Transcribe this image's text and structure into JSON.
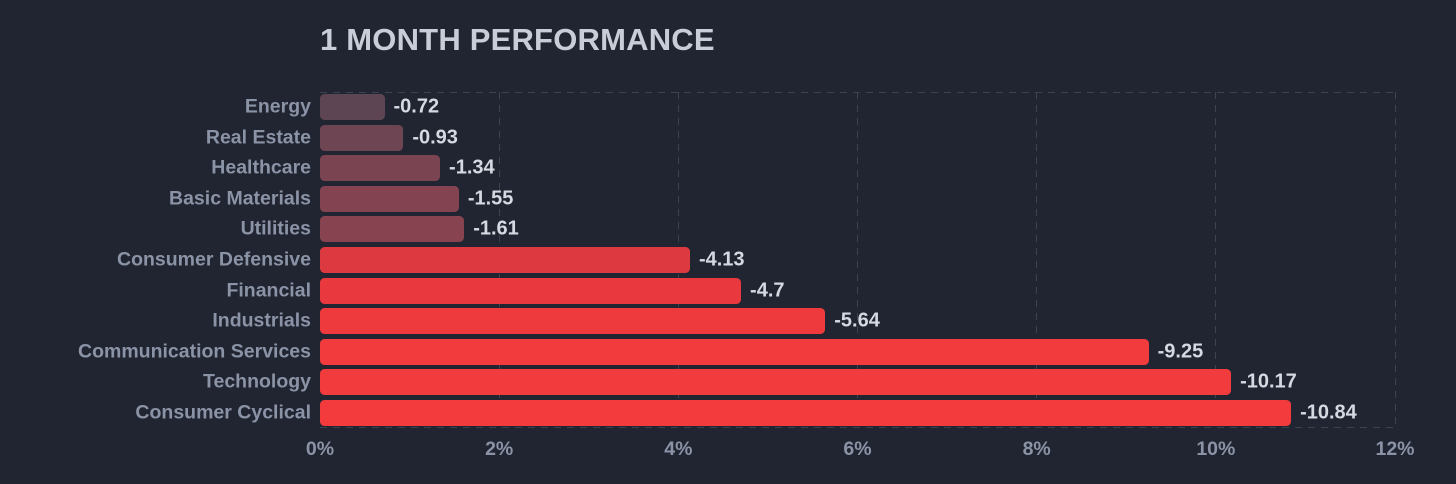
{
  "title": "1 MONTH PERFORMANCE",
  "theme": {
    "background": "#212531",
    "grid": "#3c4250",
    "title_text": "#c9cdd7",
    "category_text": "#8b93a6",
    "value_text": "#d5d9e1"
  },
  "chart_data": {
    "type": "bar",
    "orientation": "horizontal",
    "title": "1 MONTH PERFORMANCE",
    "categories": [
      "Energy",
      "Real Estate",
      "Healthcare",
      "Basic Materials",
      "Utilities",
      "Consumer Defensive",
      "Financial",
      "Industrials",
      "Communication Services",
      "Technology",
      "Consumer Cyclical"
    ],
    "values": [
      -0.72,
      -0.93,
      -1.34,
      -1.55,
      -1.61,
      -4.13,
      -4.7,
      -5.64,
      -9.25,
      -10.17,
      -10.84
    ],
    "value_labels": [
      "-0.72",
      "-0.93",
      "-1.34",
      "-1.55",
      "-1.61",
      "-4.13",
      "-4.7",
      "-5.64",
      "-9.25",
      "-10.17",
      "-10.84"
    ],
    "bar_colors": [
      "#5e4554",
      "#6d4553",
      "#7b4451",
      "#834350",
      "#87434f",
      "#dc3940",
      "#e9393e",
      "#ee3a3d",
      "#f13b3d",
      "#f23b3d",
      "#f33b3d"
    ],
    "xlabel": "",
    "ylabel": "",
    "x_tick_labels": [
      "0%",
      "2%",
      "4%",
      "6%",
      "8%",
      "10%",
      "12%"
    ],
    "x_tick_values": [
      0,
      2,
      4,
      6,
      8,
      10,
      12
    ],
    "xlim": [
      0,
      12
    ],
    "grid": "dashed vertical gridlines at each tick; dashed top and bottom plot borders",
    "legend": "none",
    "bar_length_basis": "absolute value of percentage change"
  }
}
